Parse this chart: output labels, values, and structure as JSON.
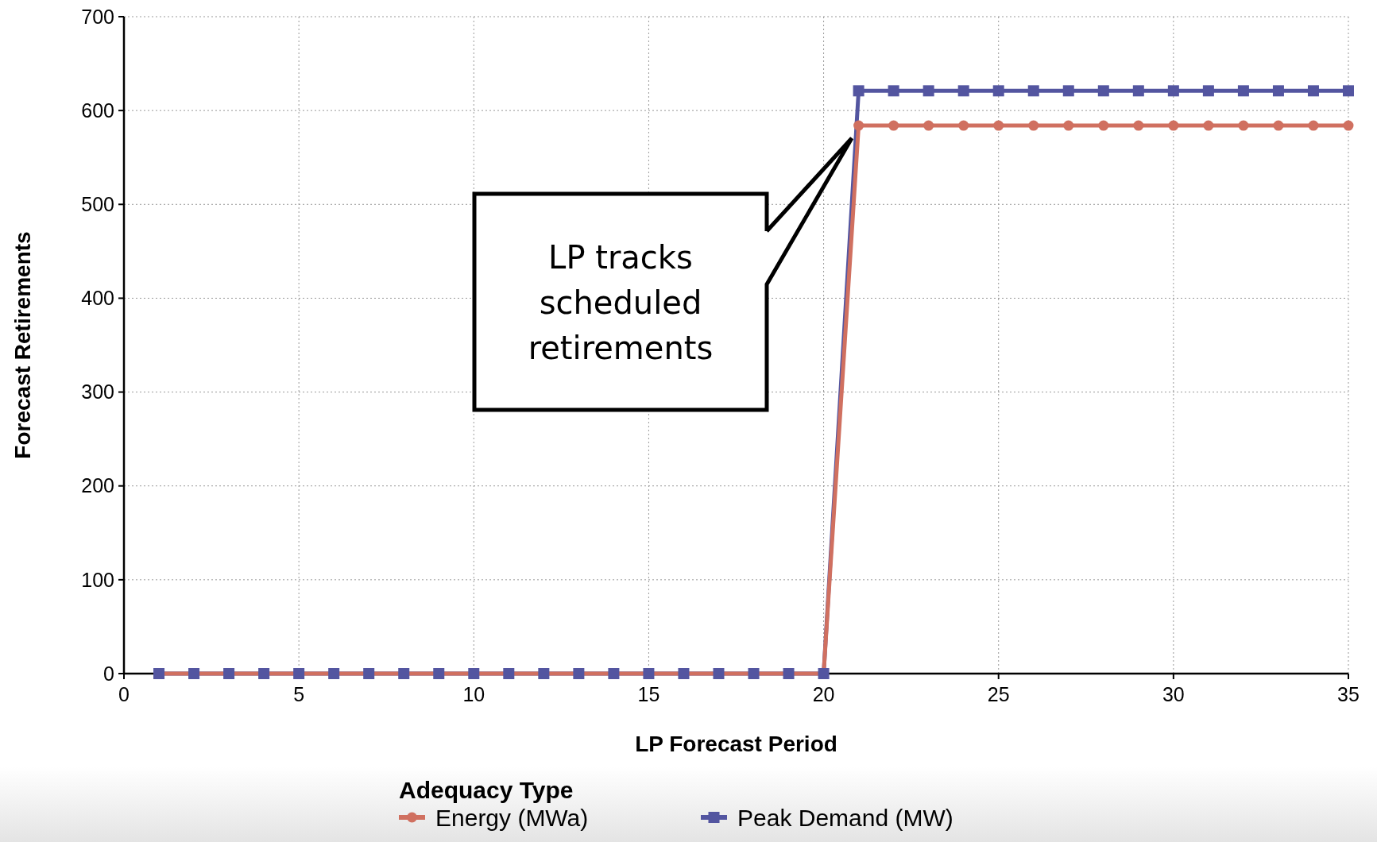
{
  "chart_data": {
    "type": "line",
    "xlabel": "LP Forecast Period",
    "ylabel": "Forecast Retirements",
    "legend_title": "Adequacy Type",
    "legend": "bottom",
    "grid": true,
    "line_style": "solid",
    "x": [
      1,
      2,
      3,
      4,
      5,
      6,
      7,
      8,
      9,
      10,
      11,
      12,
      13,
      14,
      15,
      16,
      17,
      18,
      19,
      20,
      21,
      22,
      23,
      24,
      25,
      26,
      27,
      28,
      29,
      30,
      31,
      32,
      33,
      34,
      35
    ],
    "xlim": [
      0,
      35
    ],
    "xticks": [
      0,
      5,
      10,
      15,
      20,
      25,
      30,
      35
    ],
    "ylim": [
      0,
      700
    ],
    "yticks": [
      0,
      100,
      200,
      300,
      400,
      500,
      600,
      700
    ],
    "series": [
      {
        "name": "Energy (MWa)",
        "color": "#d07060",
        "marker": "circle",
        "values": [
          0,
          0,
          0,
          0,
          0,
          0,
          0,
          0,
          0,
          0,
          0,
          0,
          0,
          0,
          0,
          0,
          0,
          0,
          0,
          0,
          584,
          584,
          584,
          584,
          584,
          584,
          584,
          584,
          584,
          584,
          584,
          584,
          584,
          584,
          584
        ]
      },
      {
        "name": "Peak Demand (MW)",
        "color": "#5355a0",
        "marker": "square",
        "values": [
          0,
          0,
          0,
          0,
          0,
          0,
          0,
          0,
          0,
          0,
          0,
          0,
          0,
          0,
          0,
          0,
          0,
          0,
          0,
          0,
          621,
          621,
          621,
          621,
          621,
          621,
          621,
          621,
          621,
          621,
          621,
          621,
          621,
          621,
          621
        ]
      }
    ],
    "annotations": [
      "LP tracks scheduled retirements"
    ]
  }
}
